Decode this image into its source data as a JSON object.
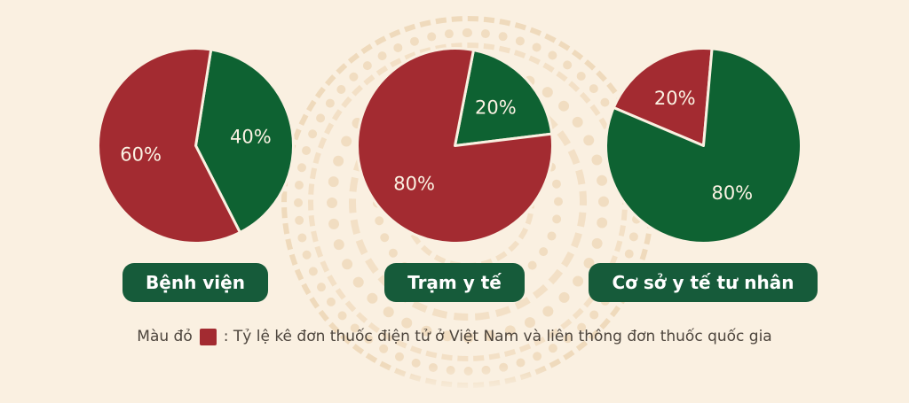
{
  "canvas": {
    "background": "#FAF0E1"
  },
  "palette": {
    "red": "#A32B31",
    "green": "#0E6232",
    "badge_green": "#165B3A",
    "badge_text": "#FFFFFF",
    "slice_label_text": "#FBF2E3",
    "legend_text": "#4D453D"
  },
  "chart_data": [
    {
      "type": "pie",
      "title": "Bệnh viện",
      "start_angle": 9,
      "slices": [
        {
          "label": "40%",
          "value": 40,
          "color": "green"
        },
        {
          "label": "60%",
          "value": 60,
          "color": "red"
        }
      ]
    },
    {
      "type": "pie",
      "title": "Trạm y tế",
      "start_angle": 11,
      "slices": [
        {
          "label": "20%",
          "value": 20,
          "color": "green"
        },
        {
          "label": "80%",
          "value": 80,
          "color": "red"
        }
      ]
    },
    {
      "type": "pie",
      "title": "Cơ sở y tế tư nhân",
      "start_angle": -67,
      "slices": [
        {
          "label": "20%",
          "value": 20,
          "color": "red"
        },
        {
          "label": "80%",
          "value": 80,
          "color": "green"
        }
      ]
    }
  ],
  "legend": {
    "prefix": "Màu đỏ",
    "swatch": "red-square",
    "text": ": Tỷ lệ kê đơn thuốc điện tử ở Việt Nam và liên thông đơn thuốc quốc gia"
  }
}
